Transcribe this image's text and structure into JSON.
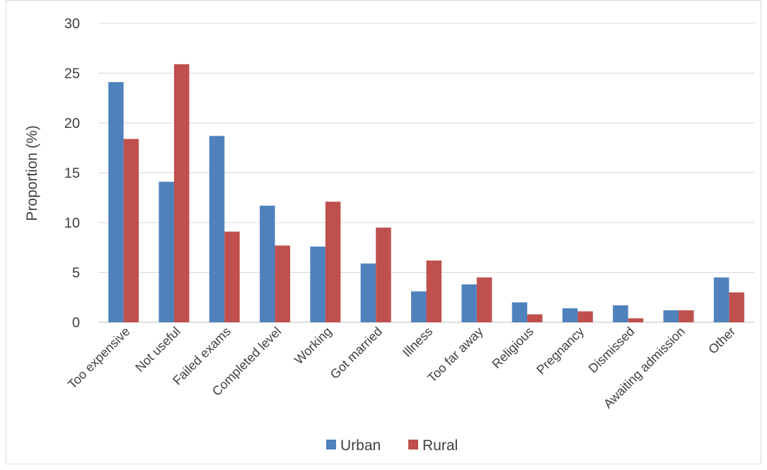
{
  "chart_data": {
    "type": "bar",
    "title": "",
    "xlabel": "",
    "ylabel": "Proportion (%)",
    "ylim": [
      0,
      30
    ],
    "yticks": [
      "0",
      "5",
      "10",
      "15",
      "20",
      "25",
      "30"
    ],
    "grid": true,
    "legend_position": "bottom",
    "categories": [
      "Too expensive",
      "Not useful",
      "Failed exams",
      "Completed level",
      "Working",
      "Got married",
      "Illness",
      "Too far away",
      "Religious",
      "Pregnancy",
      "Dismissed",
      "Awaiting admission",
      "Other"
    ],
    "series": [
      {
        "name": "Urban",
        "color": "#4f81bd",
        "values": [
          24.1,
          14.1,
          18.7,
          11.7,
          7.6,
          5.9,
          3.1,
          3.8,
          2.0,
          1.4,
          1.7,
          1.2,
          4.5
        ]
      },
      {
        "name": "Rural",
        "color": "#c0504d",
        "values": [
          18.4,
          25.9,
          9.1,
          7.7,
          12.1,
          9.5,
          6.2,
          4.5,
          0.8,
          1.1,
          0.4,
          1.2,
          3.0
        ]
      }
    ]
  }
}
